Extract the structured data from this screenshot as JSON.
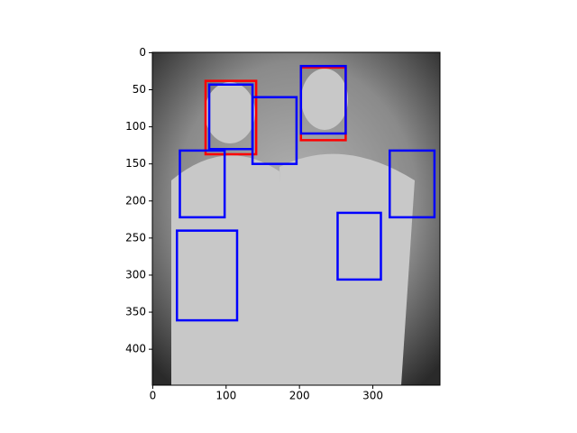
{
  "chart_data": {
    "type": "image_boxes",
    "xlim": [
      -0.5,
      391.5
    ],
    "ylim": [
      448.5,
      -0.5
    ],
    "xticks": [
      0,
      100,
      200,
      300
    ],
    "yticks": [
      0,
      50,
      100,
      150,
      200,
      250,
      300,
      350,
      400
    ],
    "series": [
      {
        "color": "#ff0000",
        "boxes": [
          {
            "x": 72,
            "y": 38,
            "width": 69,
            "height": 99
          },
          {
            "x": 202,
            "y": 20,
            "width": 61,
            "height": 98
          }
        ]
      },
      {
        "color": "#0000ff",
        "boxes": [
          {
            "x": 77,
            "y": 43,
            "width": 59,
            "height": 87
          },
          {
            "x": 136,
            "y": 60,
            "width": 60,
            "height": 90
          },
          {
            "x": 202,
            "y": 18,
            "width": 61,
            "height": 91
          },
          {
            "x": 37,
            "y": 132,
            "width": 61,
            "height": 90
          },
          {
            "x": 323,
            "y": 132,
            "width": 61,
            "height": 90
          },
          {
            "x": 252,
            "y": 216,
            "width": 59,
            "height": 90
          },
          {
            "x": 33,
            "y": 240,
            "width": 82,
            "height": 121
          }
        ]
      }
    ]
  }
}
